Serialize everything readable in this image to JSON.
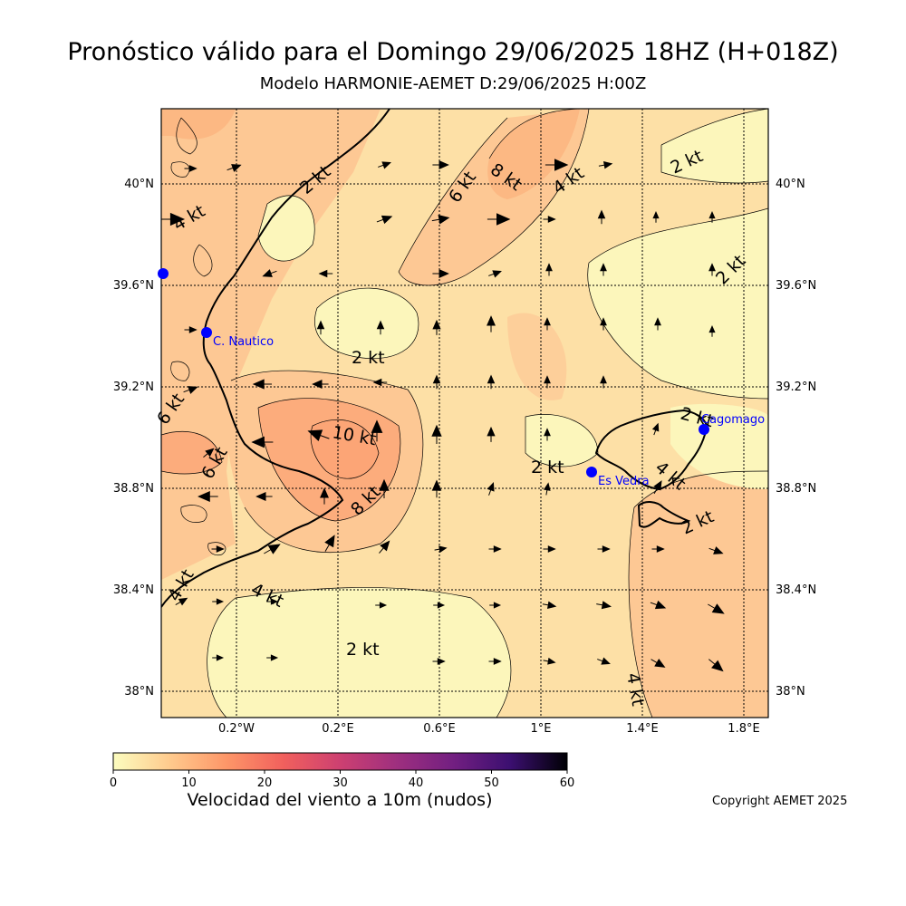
{
  "title": "Pronóstico válido para el Domingo 29/06/2025 18HZ (H+018Z)",
  "subtitle": "Modelo HARMONIE-AEMET D:29/06/2025 H:00Z",
  "lat_labels": [
    "40°N",
    "39.6°N",
    "39.2°N",
    "38.8°N",
    "38.4°N",
    "38°N"
  ],
  "lon_labels": [
    "0.2°W",
    "0.2°E",
    "0.6°E",
    "1°E",
    "1.4°E",
    "1.8°E"
  ],
  "contour_labels": [
    "2 kt",
    "4 kt",
    "6 kt",
    "8 kt",
    "10 kt"
  ],
  "places": [
    "C. Nautico",
    "Es Vedra",
    "Cagomago"
  ],
  "colorbar": {
    "title": "Velocidad del viento a 10m (nudos)",
    "ticks": [
      "0",
      "10",
      "20",
      "30",
      "40",
      "50",
      "60"
    ],
    "colormap": "magma_r",
    "colors": [
      "#fcfdbf",
      "#fec287",
      "#fb8761",
      "#e55064",
      "#b5367a",
      "#802582",
      "#4f127b",
      "#1c1044",
      "#000004"
    ]
  },
  "copyright": "Copyright AEMET 2025"
}
